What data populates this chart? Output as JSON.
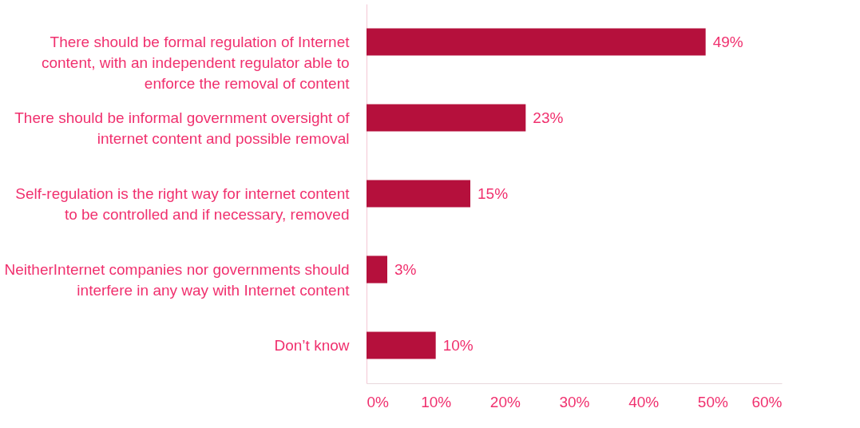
{
  "chart_data": {
    "type": "bar",
    "orientation": "horizontal",
    "categories": [
      "There should be formal regulation of Internet content, with an independent regulator able to enforce the removal of content",
      "There should be informal government oversight of internet content and possible removal",
      "Self-regulation is the right way for internet content to be controlled and if necessary, removed",
      "NeitherInternet companies nor governments should interfere in any way with Internet content",
      "Don’t know"
    ],
    "values": [
      49,
      23,
      15,
      3,
      10
    ],
    "value_labels": [
      "49%",
      "23%",
      "15%",
      "3%",
      "10%"
    ],
    "color": "#b5103c",
    "xlim": [
      0,
      60
    ],
    "xticks": [
      {
        "value": 0,
        "label": "0%"
      },
      {
        "value": 10,
        "label": "10%"
      },
      {
        "value": 20,
        "label": "20%"
      },
      {
        "value": 30,
        "label": "30%"
      },
      {
        "value": 40,
        "label": "40%"
      },
      {
        "value": 50,
        "label": "50%"
      },
      {
        "value": 60,
        "label": "60%"
      }
    ],
    "grid": false
  }
}
